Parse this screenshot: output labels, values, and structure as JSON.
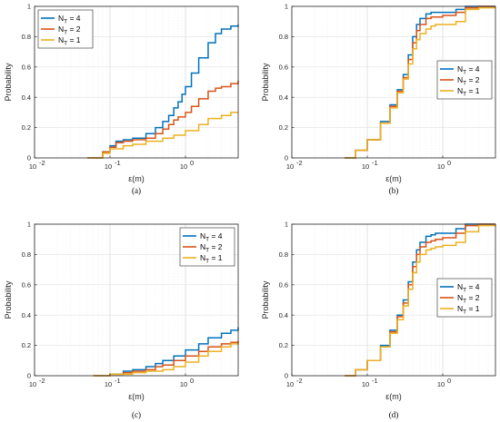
{
  "colors": {
    "NT4": "#0072BD",
    "NT2": "#D95319",
    "NT1": "#EDB120"
  },
  "chart_data": [
    {
      "type": "line",
      "caption": "(a)",
      "xlabel": "ε(m)",
      "ylabel": "Probability",
      "xscale": "log",
      "xlim": [
        0.01,
        5
      ],
      "ylim": [
        0,
        1
      ],
      "xticks": [
        "10",
        "10",
        "10"
      ],
      "xtick_exponents": [
        "-2",
        "-1",
        "0"
      ],
      "yticks": [
        "0",
        "0.2",
        "0.4",
        "0.6",
        "0.8",
        "1"
      ],
      "grid": true,
      "legend_position": "top-left",
      "series": [
        {
          "name": "N_T = 4",
          "name_base": "N",
          "name_sub": "T",
          "name_rest": " = 4",
          "color_key": "NT4",
          "x": [
            0.05,
            0.08,
            0.1,
            0.12,
            0.15,
            0.2,
            0.3,
            0.4,
            0.5,
            0.6,
            0.7,
            0.8,
            0.9,
            1.0,
            1.2,
            1.5,
            2.0,
            2.5,
            3.0,
            4.0,
            5.0
          ],
          "y": [
            0,
            0.04,
            0.08,
            0.11,
            0.12,
            0.13,
            0.16,
            0.2,
            0.24,
            0.28,
            0.33,
            0.37,
            0.42,
            0.47,
            0.56,
            0.66,
            0.76,
            0.82,
            0.85,
            0.87,
            0.88
          ]
        },
        {
          "name": "N_T = 2",
          "name_base": "N",
          "name_sub": "T",
          "name_rest": " = 2",
          "color_key": "NT2",
          "x": [
            0.05,
            0.08,
            0.1,
            0.12,
            0.15,
            0.2,
            0.3,
            0.4,
            0.5,
            0.6,
            0.7,
            0.8,
            1.0,
            1.2,
            1.5,
            2.0,
            2.5,
            3.0,
            4.0,
            5.0
          ],
          "y": [
            0,
            0.04,
            0.07,
            0.1,
            0.11,
            0.12,
            0.13,
            0.16,
            0.19,
            0.22,
            0.25,
            0.27,
            0.3,
            0.34,
            0.39,
            0.44,
            0.46,
            0.47,
            0.49,
            0.51
          ]
        },
        {
          "name": "N_T = 1",
          "name_base": "N",
          "name_sub": "T",
          "name_rest": " = 1",
          "color_key": "NT1",
          "x": [
            0.05,
            0.08,
            0.1,
            0.15,
            0.2,
            0.3,
            0.5,
            0.7,
            1.0,
            1.5,
            2.0,
            3.0,
            4.0,
            5.0
          ],
          "y": [
            0,
            0.03,
            0.06,
            0.08,
            0.09,
            0.11,
            0.13,
            0.15,
            0.18,
            0.22,
            0.26,
            0.28,
            0.3,
            0.3
          ]
        }
      ]
    },
    {
      "type": "line",
      "caption": "(b)",
      "xlabel": "ε(m)",
      "ylabel": "Probability",
      "xscale": "log",
      "xlim": [
        0.01,
        5
      ],
      "ylim": [
        0,
        1
      ],
      "xticks": [
        "10",
        "10",
        "10"
      ],
      "xtick_exponents": [
        "-2",
        "-1",
        "0"
      ],
      "yticks": [
        "0",
        "0.2",
        "0.4",
        "0.6",
        "0.8",
        "1"
      ],
      "grid": true,
      "legend_position": "right-middle",
      "series": [
        {
          "name": "N_T = 4",
          "name_base": "N",
          "name_sub": "T",
          "name_rest": " = 4",
          "color_key": "NT4",
          "x": [
            0.05,
            0.07,
            0.1,
            0.15,
            0.2,
            0.25,
            0.3,
            0.35,
            0.4,
            0.45,
            0.5,
            0.6,
            0.7,
            0.8,
            1.0,
            1.5,
            2.0,
            3.0,
            5.0
          ],
          "y": [
            0,
            0.05,
            0.12,
            0.24,
            0.35,
            0.45,
            0.55,
            0.68,
            0.8,
            0.88,
            0.92,
            0.95,
            0.96,
            0.96,
            0.96,
            0.98,
            1.0,
            1.0,
            1.0
          ]
        },
        {
          "name": "N_T = 2",
          "name_base": "N",
          "name_sub": "T",
          "name_rest": " = 2",
          "color_key": "NT2",
          "x": [
            0.05,
            0.07,
            0.1,
            0.15,
            0.2,
            0.25,
            0.3,
            0.35,
            0.4,
            0.45,
            0.5,
            0.6,
            0.7,
            0.8,
            1.0,
            1.5,
            2.0,
            3.0,
            5.0
          ],
          "y": [
            0,
            0.05,
            0.12,
            0.23,
            0.34,
            0.44,
            0.53,
            0.65,
            0.76,
            0.84,
            0.88,
            0.92,
            0.93,
            0.93,
            0.94,
            0.96,
            0.99,
            1.0,
            1.0
          ]
        },
        {
          "name": "N_T = 1",
          "name_base": "N",
          "name_sub": "T",
          "name_rest": " = 1",
          "color_key": "NT1",
          "x": [
            0.05,
            0.07,
            0.1,
            0.15,
            0.2,
            0.25,
            0.3,
            0.35,
            0.4,
            0.45,
            0.5,
            0.6,
            0.7,
            0.8,
            1.0,
            1.5,
            2.0,
            3.0,
            5.0
          ],
          "y": [
            0,
            0.05,
            0.12,
            0.23,
            0.33,
            0.43,
            0.52,
            0.62,
            0.72,
            0.78,
            0.82,
            0.85,
            0.87,
            0.88,
            0.88,
            0.9,
            0.98,
            0.99,
            0.99
          ]
        }
      ]
    },
    {
      "type": "line",
      "caption": "(c)",
      "xlabel": "ε(m)",
      "ylabel": "Probability",
      "xscale": "log",
      "xlim": [
        0.01,
        5
      ],
      "ylim": [
        0,
        1
      ],
      "xticks": [
        "10",
        "10",
        "10"
      ],
      "xtick_exponents": [
        "-2",
        "-1",
        "0"
      ],
      "yticks": [
        "0",
        "0.2",
        "0.4",
        "0.6",
        "0.8",
        "1"
      ],
      "grid": true,
      "legend_position": "top-right",
      "series": [
        {
          "name": "N_T = 4",
          "name_base": "N",
          "name_sub": "T",
          "name_rest": " = 4",
          "color_key": "NT4",
          "x": [
            0.06,
            0.1,
            0.15,
            0.2,
            0.3,
            0.4,
            0.5,
            0.7,
            1.0,
            1.5,
            2.0,
            3.0,
            4.0,
            5.0
          ],
          "y": [
            0,
            0.01,
            0.03,
            0.04,
            0.06,
            0.08,
            0.1,
            0.13,
            0.17,
            0.21,
            0.25,
            0.28,
            0.3,
            0.32
          ]
        },
        {
          "name": "N_T = 2",
          "name_base": "N",
          "name_sub": "T",
          "name_rest": " = 2",
          "color_key": "NT2",
          "x": [
            0.06,
            0.1,
            0.15,
            0.2,
            0.3,
            0.4,
            0.5,
            0.7,
            1.0,
            1.5,
            2.0,
            3.0,
            4.0,
            5.0
          ],
          "y": [
            0,
            0.01,
            0.02,
            0.03,
            0.04,
            0.06,
            0.07,
            0.1,
            0.13,
            0.16,
            0.19,
            0.21,
            0.22,
            0.23
          ]
        },
        {
          "name": "N_T = 1",
          "name_base": "N",
          "name_sub": "T",
          "name_rest": " = 1",
          "color_key": "NT1",
          "x": [
            0.06,
            0.1,
            0.2,
            0.3,
            0.5,
            0.7,
            1.0,
            1.5,
            2.0,
            3.0,
            4.0,
            5.0
          ],
          "y": [
            0,
            0.01,
            0.02,
            0.03,
            0.04,
            0.06,
            0.09,
            0.13,
            0.16,
            0.19,
            0.21,
            0.22
          ]
        }
      ]
    },
    {
      "type": "line",
      "caption": "(d)",
      "xlabel": "ε(m)",
      "ylabel": "Probability",
      "xscale": "log",
      "xlim": [
        0.01,
        5
      ],
      "ylim": [
        0,
        1
      ],
      "xticks": [
        "10",
        "10",
        "10"
      ],
      "xtick_exponents": [
        "-2",
        "-1",
        "0"
      ],
      "yticks": [
        "0",
        "0.2",
        "0.4",
        "0.6",
        "0.8",
        "1"
      ],
      "grid": true,
      "legend_position": "right-middle",
      "series": [
        {
          "name": "N_T = 4",
          "name_base": "N",
          "name_sub": "T",
          "name_rest": " = 4",
          "color_key": "NT4",
          "x": [
            0.05,
            0.07,
            0.1,
            0.15,
            0.2,
            0.25,
            0.3,
            0.35,
            0.4,
            0.45,
            0.5,
            0.6,
            0.7,
            0.8,
            1.0,
            1.5,
            2.0,
            3.0,
            5.0
          ],
          "y": [
            0,
            0.04,
            0.1,
            0.2,
            0.3,
            0.4,
            0.5,
            0.62,
            0.75,
            0.83,
            0.88,
            0.92,
            0.93,
            0.94,
            0.94,
            0.97,
            1.0,
            1.0,
            1.0
          ]
        },
        {
          "name": "N_T = 2",
          "name_base": "N",
          "name_sub": "T",
          "name_rest": " = 2",
          "color_key": "NT2",
          "x": [
            0.05,
            0.07,
            0.1,
            0.15,
            0.2,
            0.25,
            0.3,
            0.35,
            0.4,
            0.45,
            0.5,
            0.6,
            0.7,
            0.8,
            1.0,
            1.5,
            2.0,
            3.0,
            5.0
          ],
          "y": [
            0,
            0.04,
            0.1,
            0.19,
            0.29,
            0.39,
            0.48,
            0.6,
            0.72,
            0.8,
            0.85,
            0.88,
            0.89,
            0.9,
            0.91,
            0.94,
            0.99,
            1.0,
            1.0
          ]
        },
        {
          "name": "N_T = 1",
          "name_base": "N",
          "name_sub": "T",
          "name_rest": " = 1",
          "color_key": "NT1",
          "x": [
            0.05,
            0.07,
            0.1,
            0.15,
            0.2,
            0.25,
            0.3,
            0.35,
            0.4,
            0.45,
            0.5,
            0.6,
            0.7,
            0.8,
            1.0,
            1.5,
            2.0,
            3.0,
            5.0
          ],
          "y": [
            0,
            0.04,
            0.1,
            0.19,
            0.28,
            0.37,
            0.46,
            0.57,
            0.68,
            0.75,
            0.8,
            0.83,
            0.84,
            0.85,
            0.86,
            0.88,
            0.95,
            0.99,
            1.0
          ]
        }
      ]
    }
  ]
}
